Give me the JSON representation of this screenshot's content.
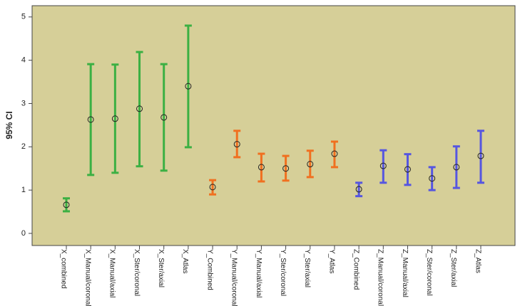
{
  "chart_data": {
    "type": "errorbar",
    "y_label": "95% CI",
    "categories": [
      "X_combined",
      "X_Manual/coronal",
      "X_Manual/axial",
      "X_Ster/coronal",
      "X_Ster/axial",
      "X_Atlas",
      "Y_Combined",
      "Y_Manual/coronal",
      "Y_Manual/axial",
      "Y_Ster/coronal",
      "Y_Ster/axial",
      "Y_Atlas",
      "Z_Combined",
      "Z_Manual/coronal",
      "Z_Manual/axial",
      "Z_Ster/coronal",
      "Z_Ster/axial",
      "Z_Atlas"
    ],
    "values": [
      0.66,
      2.63,
      2.65,
      2.88,
      2.68,
      3.4,
      1.07,
      2.06,
      1.53,
      1.5,
      1.6,
      1.84,
      1.02,
      1.56,
      1.48,
      1.27,
      1.53,
      1.79
    ],
    "lower": [
      0.51,
      1.35,
      1.4,
      1.55,
      1.45,
      1.99,
      0.9,
      1.76,
      1.2,
      1.22,
      1.3,
      1.53,
      0.86,
      1.17,
      1.12,
      1.0,
      1.05,
      1.17
    ],
    "upper": [
      0.81,
      3.91,
      3.9,
      4.19,
      3.91,
      4.8,
      1.23,
      2.37,
      1.84,
      1.79,
      1.91,
      2.12,
      1.17,
      1.92,
      1.83,
      1.53,
      2.01,
      2.37
    ],
    "colors": [
      "#3cb043",
      "#3cb043",
      "#3cb043",
      "#3cb043",
      "#3cb043",
      "#3cb043",
      "#f07020",
      "#f07020",
      "#f07020",
      "#f07020",
      "#f07020",
      "#f07020",
      "#5656e0",
      "#5656e0",
      "#5656e0",
      "#5656e0",
      "#5656e0",
      "#5656e0"
    ],
    "ylim": [
      -0.28,
      5.26
    ],
    "yticks": [
      0,
      1,
      2,
      3,
      4,
      5
    ]
  }
}
